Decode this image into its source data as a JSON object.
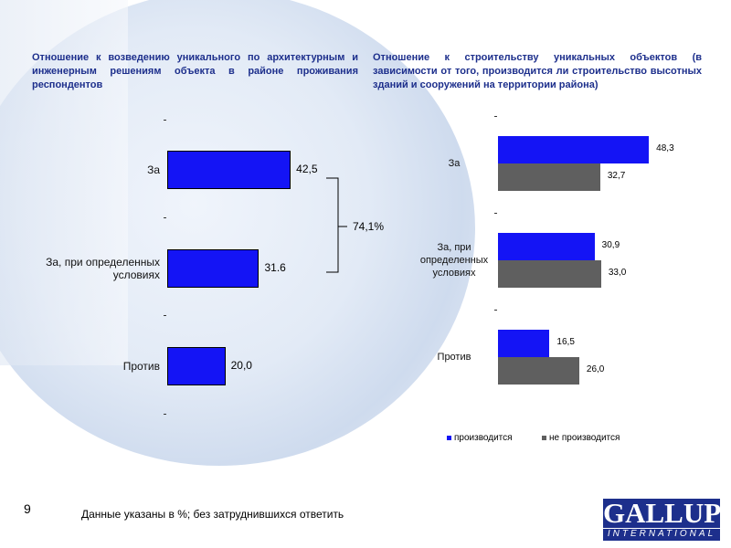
{
  "chart_data": [
    {
      "type": "hbar",
      "title": "Отношение к возведению уникального по архитектурным и инженерным решениям объекта в районе проживания респондентов",
      "categories": [
        "За",
        "За, при определенных условиях",
        "Против"
      ],
      "values": [
        42.5,
        31.6,
        20.0
      ],
      "value_labels": [
        "42,5",
        "31.6",
        "20,0"
      ],
      "color": "#1414f5",
      "annotation": "74,1%"
    },
    {
      "type": "grouped-hbar",
      "title": "Отношение к строительству уникальных объектов (в зависимости от того, производится ли строительство высотных зданий и сооружений на территории района)",
      "categories": [
        "За",
        "За, при определенных условиях",
        "Против"
      ],
      "series": [
        {
          "name": "производится",
          "color": "#1414f5",
          "values": [
            48.3,
            30.9,
            16.5
          ],
          "value_labels": [
            "48,3",
            "30,9",
            "16,5"
          ]
        },
        {
          "name": "не производится",
          "color": "#5f5f5f",
          "values": [
            32.7,
            33.0,
            26.0
          ],
          "value_labels": [
            "32,7",
            "33,0",
            "26,0"
          ]
        }
      ],
      "legend": "bottom"
    }
  ],
  "page_number": "9",
  "footnote": "Данные указаны в %; без затруднившихся ответить",
  "logo": {
    "name": "GALLUP",
    "subtitle": "INTERNATIONAL"
  }
}
